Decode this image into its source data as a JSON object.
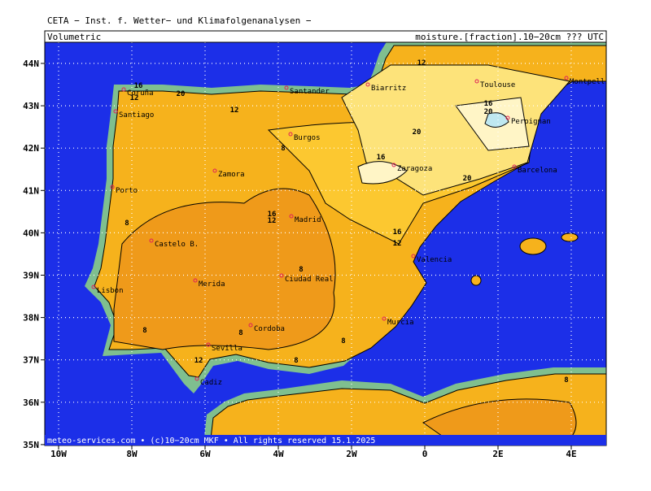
{
  "header": {
    "title": "CETA − Inst. f. Wetter− und Klimafolgenanalysen −",
    "field": "Volumetric",
    "variable": "moisture.[fraction].10−20cm ??? UTC"
  },
  "axes": {
    "lat_ticks": [
      "44N",
      "43N",
      "42N",
      "41N",
      "40N",
      "39N",
      "38N",
      "37N",
      "36N",
      "35N"
    ],
    "lon_ticks": [
      "10W",
      "8W",
      "6W",
      "4W",
      "2W",
      "0",
      "2E",
      "4E"
    ]
  },
  "cities": [
    "Coruña",
    "Santander",
    "Biarritz",
    "Toulouse",
    "Montpellier",
    "Santiago",
    "Burgos",
    "Perpignan",
    "Zamora",
    "Zaragoza",
    "Barcelona",
    "Porto",
    "Madrid",
    "Castelo B.",
    "Valencia",
    "Lisbon",
    "Merida",
    "Ciudad Real",
    "Cordoba",
    "Murcia",
    "Sevilla",
    "Cadiz"
  ],
  "contour_labels": [
    12,
    16,
    20,
    12,
    20,
    16,
    12,
    20,
    8,
    16,
    20,
    8,
    12,
    16,
    12,
    16,
    8,
    8,
    8,
    8,
    12,
    8,
    8
  ],
  "footer": "meteo-services.com • (c)10−20cm MKF • All rights reserved 15.1.2025"
}
